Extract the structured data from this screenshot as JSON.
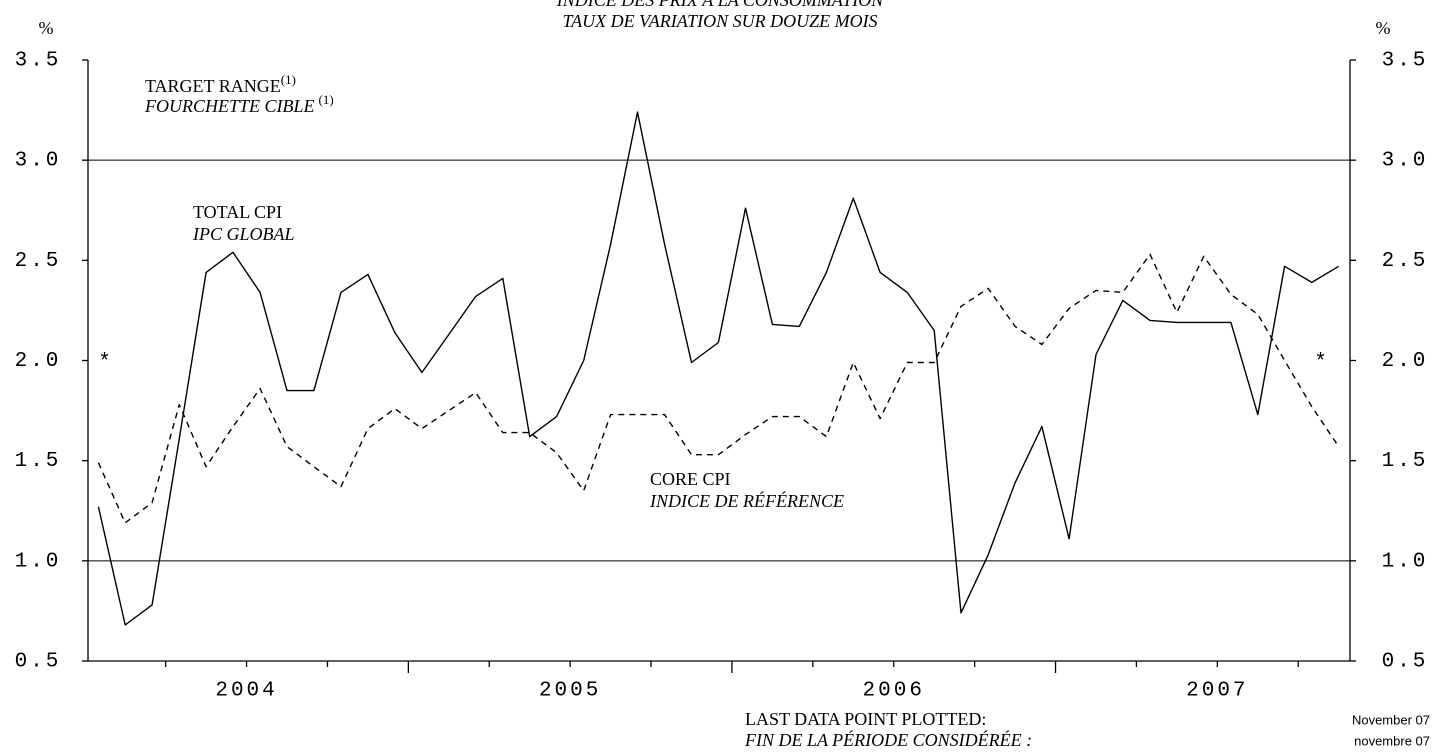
{
  "chart_data": {
    "type": "line",
    "title": "INDICE DES PRIX À LA CONSOMMATION",
    "subtitle": "TAUX DE VARIATION SUR DOUZE MOIS",
    "y_label": "%",
    "y2_label": "%",
    "x": [
      2004.042,
      2004.125,
      2004.208,
      2004.292,
      2004.375,
      2004.458,
      2004.542,
      2004.625,
      2004.708,
      2004.792,
      2004.875,
      2004.958,
      2005.042,
      2005.125,
      2005.208,
      2005.292,
      2005.375,
      2005.458,
      2005.542,
      2005.625,
      2005.708,
      2005.792,
      2005.875,
      2005.958,
      2006.042,
      2006.125,
      2006.208,
      2006.292,
      2006.375,
      2006.458,
      2006.542,
      2006.625,
      2006.708,
      2006.792,
      2006.875,
      2006.958,
      2007.042,
      2007.125,
      2007.208,
      2007.292,
      2007.375,
      2007.458,
      2007.542,
      2007.625,
      2007.708,
      2007.792,
      2007.875
    ],
    "xlim": [
      2004.01,
      2007.91
    ],
    "xticks": [
      {
        "value": 2004.5,
        "label": "2004"
      },
      {
        "value": 2005.5,
        "label": "2005"
      },
      {
        "value": 2006.5,
        "label": "2006"
      },
      {
        "value": 2007.5,
        "label": "2007"
      }
    ],
    "xminorticks": [
      2004.25,
      2004.5,
      2004.75,
      2005,
      2005.25,
      2005.5,
      2005.75,
      2006,
      2006.25,
      2006.5,
      2006.75,
      2007,
      2007.25,
      2007.5,
      2007.75
    ],
    "ylim": [
      0.5,
      3.5
    ],
    "yticks": [
      {
        "value": 0.5,
        "label": "0.5"
      },
      {
        "value": 1,
        "label": "1.0"
      },
      {
        "value": 1.5,
        "label": "1.5"
      },
      {
        "value": 2,
        "label": "2.0"
      },
      {
        "value": 2.5,
        "label": "2.5"
      },
      {
        "value": 3,
        "label": "3.0"
      },
      {
        "value": 3.5,
        "label": "3.5"
      }
    ],
    "y2lim": [
      0.5,
      3.5
    ],
    "y2ticks": [
      {
        "value": 0.5,
        "label": "0.5"
      },
      {
        "value": 1,
        "label": "1.0"
      },
      {
        "value": 1.5,
        "label": "1.5"
      },
      {
        "value": 2,
        "label": "2.0"
      },
      {
        "value": 2.5,
        "label": "2.5"
      },
      {
        "value": 3,
        "label": "3.0"
      },
      {
        "value": 3.5,
        "label": "3.5"
      }
    ],
    "target_range": [
      1,
      3
    ],
    "series": [
      {
        "name": "TOTAL CPI",
        "name_fr": "IPC GLOBAL",
        "color": "#000000",
        "dash": false,
        "values": [
          1.27,
          0.68,
          0.78,
          1.61,
          2.44,
          2.54,
          2.34,
          1.85,
          1.85,
          2.34,
          2.43,
          2.14,
          1.94,
          2.13,
          2.32,
          2.41,
          1.62,
          1.72,
          2.0,
          2.58,
          3.24,
          2.58,
          1.99,
          2.09,
          2.76,
          2.18,
          2.17,
          2.44,
          2.81,
          2.44,
          2.34,
          2.15,
          0.74,
          1.03,
          1.39,
          1.67,
          1.11,
          2.03,
          2.3,
          2.2,
          2.19,
          2.19,
          2.19,
          1.73,
          2.47,
          2.39,
          2.47
        ]
      },
      {
        "name": "CORE CPI",
        "name_fr": "INDICE DE RÉFÉRENCE",
        "color": "#000000",
        "dash": true,
        "values": [
          1.49,
          1.19,
          1.29,
          1.78,
          1.47,
          1.67,
          1.86,
          1.57,
          1.47,
          1.37,
          1.66,
          1.76,
          1.66,
          1.75,
          1.84,
          1.64,
          1.64,
          1.54,
          1.35,
          1.73,
          1.73,
          1.73,
          1.53,
          1.53,
          1.63,
          1.72,
          1.72,
          1.62,
          1.99,
          1.71,
          1.99,
          1.99,
          2.27,
          2.36,
          2.17,
          2.08,
          2.26,
          2.35,
          2.34,
          2.53,
          2.24,
          2.52,
          2.33,
          2.23,
          2.0,
          1.77,
          1.57
        ]
      }
    ],
    "annotations": {
      "target_en": "TARGET RANGE",
      "target_note": "(1)",
      "target_fr": "FOURCHETTE CIBLE",
      "target_fr_note": "(1)",
      "star_left": "*",
      "star_right": "*"
    },
    "footer": {
      "last_en": "LAST DATA POINT PLOTTED:",
      "last_fr": "FIN DE LA PÉRIODE CONSIDÉRÉE :",
      "date_en": "November 07",
      "date_fr": "novembre 07"
    }
  }
}
